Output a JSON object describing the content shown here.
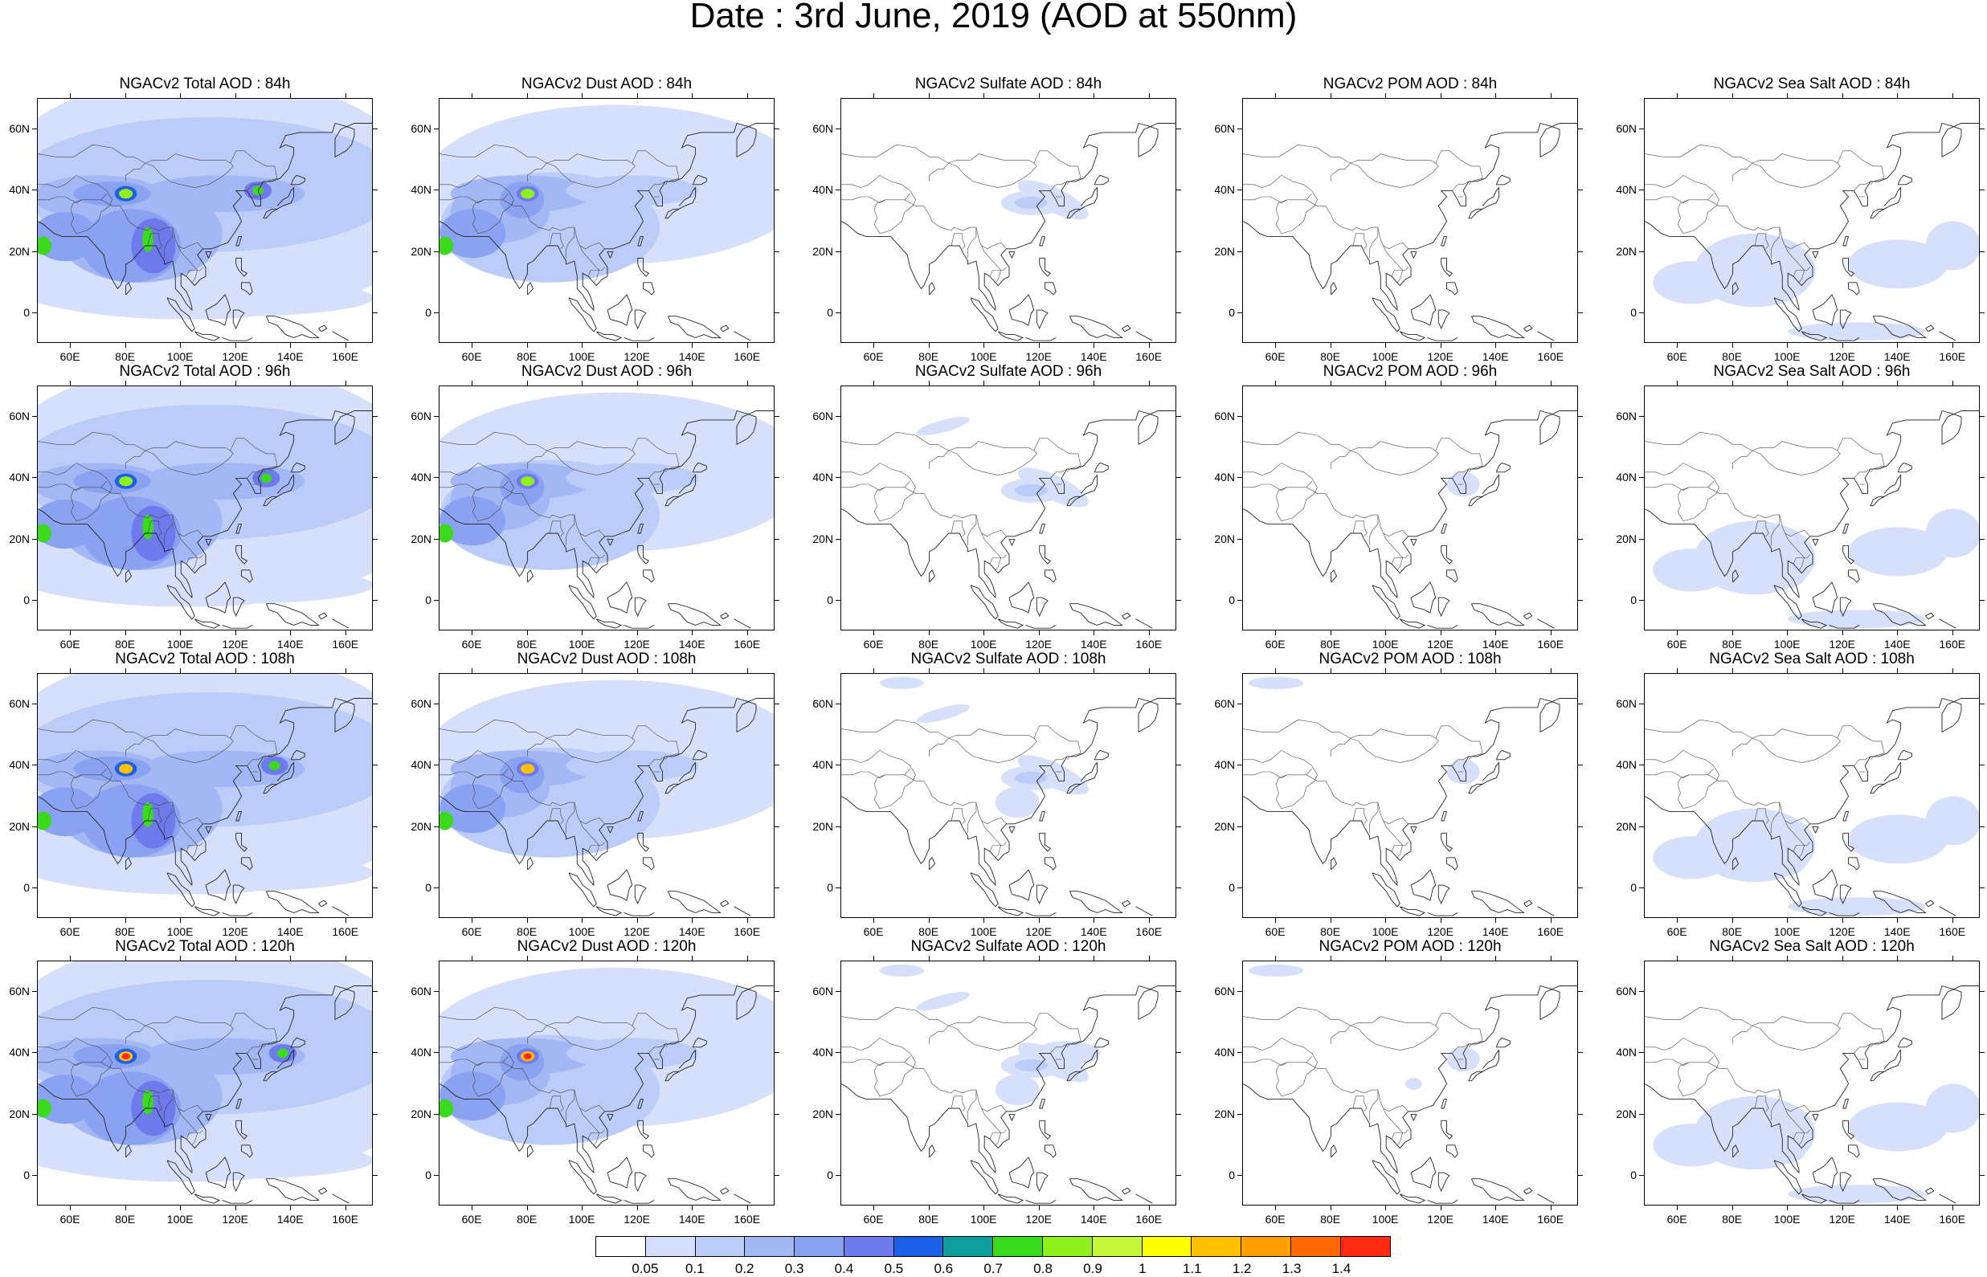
{
  "title": "Date : 3rd June, 2019 (AOD at 550nm)",
  "row_forecast_hours": [
    "84h",
    "96h",
    "108h",
    "120h"
  ],
  "panel_titles": [
    [
      "NGACv2 Total AOD : 84h",
      "NGACv2 Dust AOD : 84h",
      "NGACv2 Sulfate AOD : 84h",
      "NGACv2 POM AOD : 84h",
      "NGACv2 Sea Salt AOD : 84h"
    ],
    [
      "NGACv2 Total AOD : 96h",
      "NGACv2 Dust AOD : 96h",
      "NGACv2 Sulfate AOD : 96h",
      "NGACv2 POM AOD : 96h",
      "NGACv2 Sea Salt AOD : 96h"
    ],
    [
      "NGACv2 Total AOD : 108h",
      "NGACv2 Dust AOD : 108h",
      "NGACv2 Sulfate AOD : 108h",
      "NGACv2 POM AOD : 108h",
      "NGACv2 Sea Salt AOD : 108h"
    ],
    [
      "NGACv2 Total AOD : 120h",
      "NGACv2 Dust AOD : 120h",
      "NGACv2 Sulfate AOD : 120h",
      "NGACv2 POM AOD : 120h",
      "NGACv2 Sea Salt  AOD : 120h"
    ]
  ],
  "species_columns": [
    "Total",
    "Dust",
    "Sulfate",
    "POM",
    "Sea Salt"
  ],
  "map_extent": {
    "lon_min": 48,
    "lon_max": 170,
    "lat_min": -10,
    "lat_max": 70
  },
  "lon_ticks": [
    "60E",
    "80E",
    "100E",
    "120E",
    "140E",
    "160E"
  ],
  "lon_tick_values": [
    60,
    80,
    100,
    120,
    140,
    160
  ],
  "lat_ticks": [
    "60N",
    "40N",
    "20N",
    "0"
  ],
  "lat_tick_values": [
    60,
    40,
    20,
    0
  ],
  "colorbar": {
    "colors": [
      "#ffffff",
      "#d6e0fb",
      "#bcccf8",
      "#a3b7f5",
      "#8aa2f2",
      "#6e79ec",
      "#1c5fe8",
      "#0e9c9c",
      "#3adb1c",
      "#90f01c",
      "#c6f53a",
      "#ffff00",
      "#ffc000",
      "#ffa000",
      "#ff6a00",
      "#ff2a10"
    ],
    "labels": [
      "0.05",
      "0.1",
      "0.2",
      "0.3",
      "0.4",
      "0.5",
      "0.6",
      "0.7",
      "0.8",
      "0.9",
      "1",
      "1.1",
      "1.2",
      "1.3",
      "1.4"
    ]
  }
}
